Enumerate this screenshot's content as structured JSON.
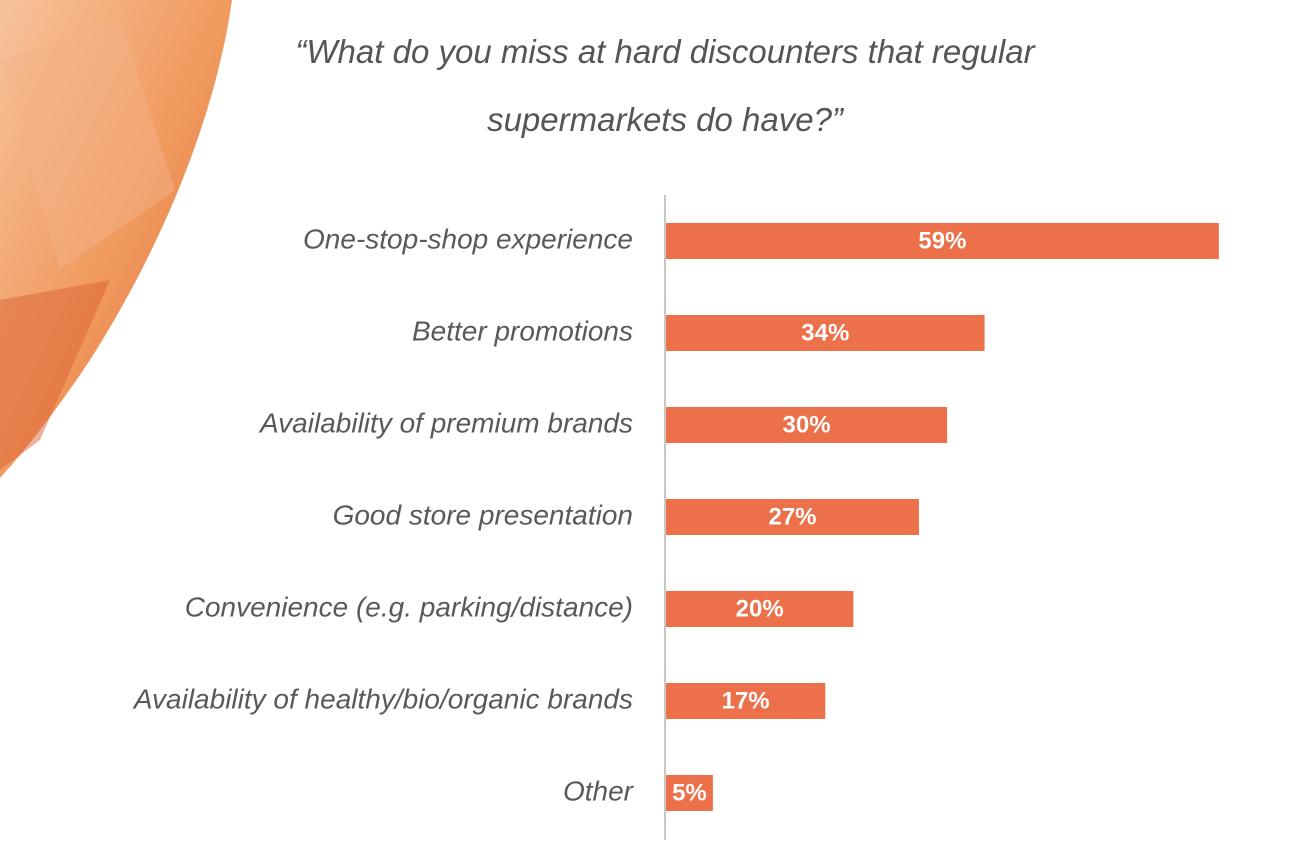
{
  "chart_data": {
    "type": "bar",
    "orientation": "horizontal",
    "title": "“What do you miss at hard discounters that regular supermarkets do have?”",
    "categories": [
      "One-stop-shop experience",
      "Better promotions",
      "Availability of premium brands",
      "Good store presentation",
      "Convenience (e.g. parking/distance)",
      "Availability of healthy/bio/organic brands",
      "Other"
    ],
    "values": [
      59,
      34,
      30,
      27,
      20,
      17,
      5
    ],
    "value_labels": [
      "59%",
      "34%",
      "30%",
      "27%",
      "20%",
      "17%",
      "5%"
    ],
    "color": "#ec7049"
  }
}
